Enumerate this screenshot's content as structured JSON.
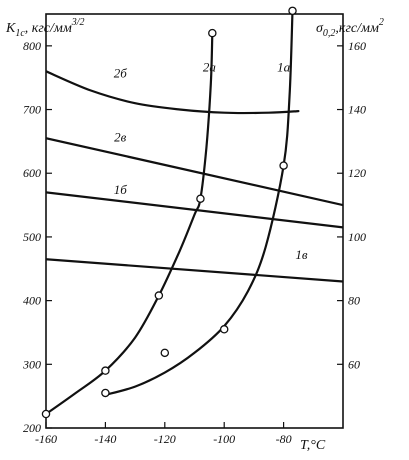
{
  "chart_data": {
    "type": "line",
    "x": {
      "label": "T,°C",
      "lim": [
        -160,
        -60
      ],
      "ticks": [
        -160,
        -140,
        -120,
        -100,
        -80
      ]
    },
    "y_left": {
      "label": "K1c, кгс/мм3/2",
      "label_main": "K",
      "label_sub": "1c",
      "label_unit": ", кгс/мм",
      "label_exp": "3/2",
      "lim": [
        200,
        850
      ],
      "ticks": [
        200,
        300,
        400,
        500,
        600,
        700,
        800
      ]
    },
    "y_right": {
      "label": "σ0,2,кгс/мм2",
      "label_main": "σ",
      "label_sub": "0,2",
      "label_unit": ",кгс/мм",
      "label_exp": "2",
      "lim": [
        40,
        170
      ],
      "ticks": [
        60,
        80,
        100,
        120,
        140,
        160
      ]
    },
    "series": [
      {
        "name": "2а",
        "axis": "left",
        "label_at": [
          -105,
          760
        ],
        "markers": true,
        "points": [
          [
            -160,
            222
          ],
          [
            -140,
            290
          ],
          [
            -122,
            408
          ],
          [
            -108,
            560
          ],
          [
            -104,
            820
          ]
        ],
        "smooth": [
          [
            -160,
            222
          ],
          [
            -150,
            255
          ],
          [
            -140,
            290
          ],
          [
            -130,
            342
          ],
          [
            -122,
            408
          ],
          [
            -115,
            478
          ],
          [
            -110,
            535
          ],
          [
            -108,
            560
          ],
          [
            -106,
            640
          ],
          [
            -104.5,
            740
          ],
          [
            -104,
            820
          ]
        ]
      },
      {
        "name": "1а",
        "axis": "left",
        "label_at": [
          -80,
          760
        ],
        "markers": true,
        "points": [
          [
            -140,
            255
          ],
          [
            -120,
            318
          ],
          [
            -100,
            355
          ],
          [
            -80,
            612
          ],
          [
            -77,
            855
          ]
        ],
        "smooth": [
          [
            -140,
            252
          ],
          [
            -130,
            265
          ],
          [
            -120,
            287
          ],
          [
            -110,
            318
          ],
          [
            -100,
            360
          ],
          [
            -92,
            415
          ],
          [
            -86,
            485
          ],
          [
            -80,
            612
          ],
          [
            -78,
            720
          ],
          [
            -77,
            855
          ]
        ]
      },
      {
        "name": "2б",
        "axis": "right",
        "label_at": [
          -135,
          150
        ],
        "markers": false,
        "smooth": [
          [
            -160,
            152
          ],
          [
            -145,
            146
          ],
          [
            -130,
            142
          ],
          [
            -115,
            140
          ],
          [
            -100,
            139
          ],
          [
            -85,
            139
          ],
          [
            -75,
            139.5
          ]
        ]
      },
      {
        "name": "2в",
        "axis": "right",
        "label_at": [
          -135,
          130
        ],
        "markers": false,
        "smooth": [
          [
            -160,
            131
          ],
          [
            -60,
            110
          ]
        ]
      },
      {
        "name": "1б",
        "axis": "right",
        "label_at": [
          -135,
          113.5
        ],
        "markers": false,
        "smooth": [
          [
            -160,
            114
          ],
          [
            -60,
            103
          ]
        ]
      },
      {
        "name": "1в",
        "axis": "right",
        "label_at": [
          -74,
          93
        ],
        "markers": false,
        "smooth": [
          [
            -160,
            93
          ],
          [
            -60,
            86
          ]
        ]
      }
    ],
    "grid": false
  }
}
